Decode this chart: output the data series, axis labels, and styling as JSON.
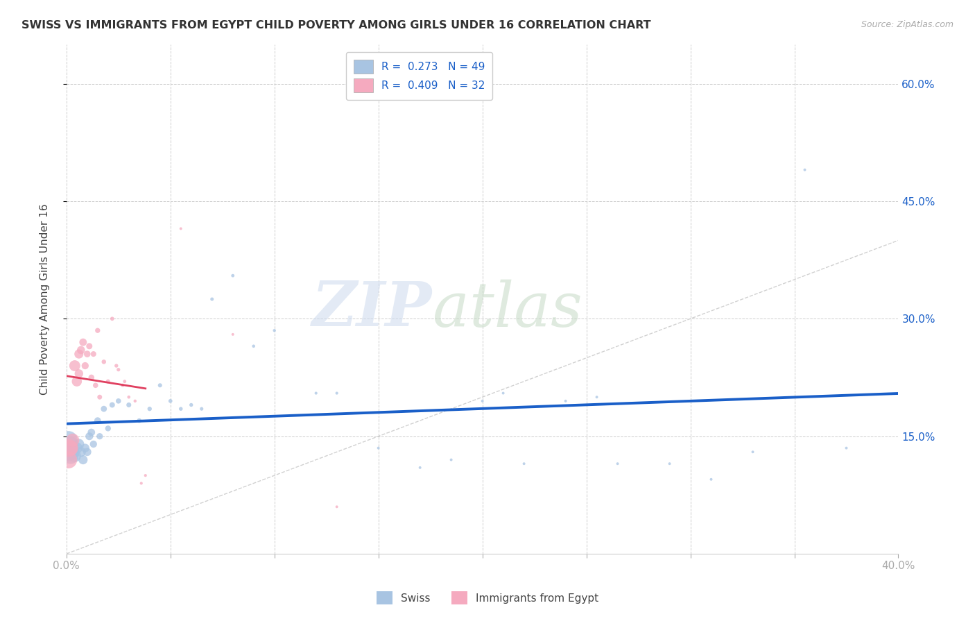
{
  "title": "SWISS VS IMMIGRANTS FROM EGYPT CHILD POVERTY AMONG GIRLS UNDER 16 CORRELATION CHART",
  "source": "Source: ZipAtlas.com",
  "ylabel": "Child Poverty Among Girls Under 16",
  "xlim": [
    0.0,
    0.4
  ],
  "ylim": [
    0.0,
    0.65
  ],
  "swiss_color": "#a8c4e2",
  "egypt_color": "#f5aabf",
  "swiss_line_color": "#1a5fc8",
  "egypt_line_color": "#e04060",
  "diag_line_color": "#cccccc",
  "swiss_x": [
    0.001,
    0.001,
    0.002,
    0.002,
    0.003,
    0.004,
    0.005,
    0.006,
    0.007,
    0.008,
    0.009,
    0.01,
    0.011,
    0.012,
    0.013,
    0.015,
    0.016,
    0.018,
    0.02,
    0.022,
    0.025,
    0.03,
    0.035,
    0.04,
    0.045,
    0.05,
    0.055,
    0.06,
    0.065,
    0.07,
    0.08,
    0.09,
    0.1,
    0.12,
    0.13,
    0.15,
    0.17,
    0.185,
    0.2,
    0.21,
    0.22,
    0.24,
    0.255,
    0.265,
    0.29,
    0.31,
    0.33,
    0.355,
    0.375
  ],
  "swiss_y": [
    0.13,
    0.145,
    0.125,
    0.14,
    0.13,
    0.125,
    0.135,
    0.14,
    0.13,
    0.12,
    0.135,
    0.13,
    0.15,
    0.155,
    0.14,
    0.17,
    0.15,
    0.185,
    0.16,
    0.19,
    0.195,
    0.19,
    0.17,
    0.185,
    0.215,
    0.195,
    0.185,
    0.19,
    0.185,
    0.325,
    0.355,
    0.265,
    0.285,
    0.205,
    0.205,
    0.135,
    0.11,
    0.12,
    0.195,
    0.205,
    0.115,
    0.195,
    0.2,
    0.115,
    0.115,
    0.095,
    0.13,
    0.49,
    0.135
  ],
  "egypt_x": [
    0.001,
    0.001,
    0.002,
    0.003,
    0.004,
    0.005,
    0.006,
    0.006,
    0.007,
    0.008,
    0.009,
    0.01,
    0.011,
    0.012,
    0.013,
    0.014,
    0.015,
    0.016,
    0.018,
    0.02,
    0.022,
    0.024,
    0.025,
    0.027,
    0.028,
    0.03,
    0.033,
    0.036,
    0.038,
    0.055,
    0.08,
    0.13
  ],
  "egypt_y": [
    0.135,
    0.12,
    0.135,
    0.145,
    0.24,
    0.22,
    0.255,
    0.23,
    0.26,
    0.27,
    0.24,
    0.255,
    0.265,
    0.225,
    0.255,
    0.215,
    0.285,
    0.2,
    0.245,
    0.22,
    0.3,
    0.24,
    0.235,
    0.215,
    0.22,
    0.2,
    0.195,
    0.09,
    0.1,
    0.415,
    0.28,
    0.06
  ],
  "swiss_sizes": [
    380,
    360,
    280,
    260,
    200,
    170,
    140,
    120,
    105,
    90,
    80,
    72,
    65,
    60,
    55,
    48,
    44,
    40,
    36,
    33,
    30,
    26,
    23,
    21,
    19,
    17,
    16,
    15,
    14,
    13,
    12,
    11,
    10,
    9,
    9,
    8,
    8,
    8,
    8,
    8,
    8,
    8,
    8,
    8,
    8,
    8,
    8,
    8,
    8
  ],
  "egypt_sizes": [
    340,
    320,
    250,
    190,
    130,
    110,
    90,
    80,
    70,
    62,
    55,
    48,
    42,
    38,
    34,
    30,
    28,
    25,
    22,
    19,
    17,
    15,
    14,
    13,
    12,
    11,
    10,
    9,
    9,
    8,
    8,
    8
  ]
}
